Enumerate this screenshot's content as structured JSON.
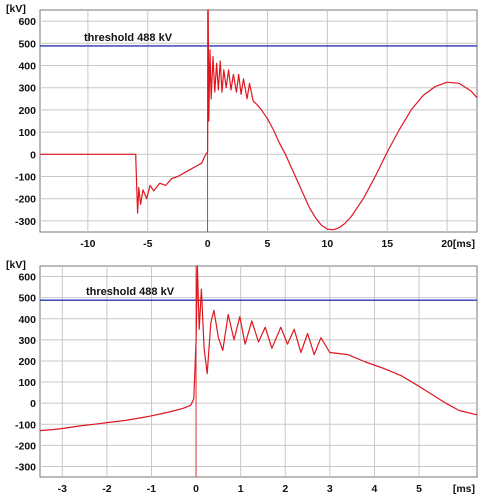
{
  "chart_data": [
    {
      "type": "line",
      "y_unit_label": "[kV]",
      "x_unit_label": "[ms]",
      "xlim": [
        -14,
        22.5
      ],
      "ylim": [
        -350,
        650
      ],
      "x_ticks": [
        -10,
        -5,
        0,
        5,
        10,
        15,
        20
      ],
      "y_ticks": [
        600,
        500,
        400,
        300,
        200,
        100,
        0,
        -100,
        -200,
        -300
      ],
      "grid": true,
      "threshold": {
        "value": 488,
        "label": "threshold 488 kV",
        "color": "#2b35b8"
      },
      "series": [
        {
          "color": "#e0161f",
          "points": [
            [
              -14,
              0
            ],
            [
              -6,
              0
            ],
            [
              -6,
              -20
            ],
            [
              -5.85,
              -265
            ],
            [
              -5.75,
              -150
            ],
            [
              -5.6,
              -225
            ],
            [
              -5.4,
              -160
            ],
            [
              -5.1,
              -200
            ],
            [
              -4.8,
              -140
            ],
            [
              -4.5,
              -165
            ],
            [
              -4,
              -130
            ],
            [
              -3.5,
              -140
            ],
            [
              -3,
              -110
            ],
            [
              -2.5,
              -100
            ],
            [
              -2,
              -85
            ],
            [
              -1.5,
              -70
            ],
            [
              -1,
              -55
            ],
            [
              -0.5,
              -40
            ],
            [
              -0.15,
              0
            ],
            [
              0,
              10
            ],
            [
              0.05,
              650
            ],
            [
              0.1,
              150
            ],
            [
              0.2,
              470
            ],
            [
              0.3,
              250
            ],
            [
              0.45,
              440
            ],
            [
              0.6,
              280
            ],
            [
              0.75,
              410
            ],
            [
              0.9,
              290
            ],
            [
              1.05,
              420
            ],
            [
              1.2,
              280
            ],
            [
              1.35,
              380
            ],
            [
              1.55,
              300
            ],
            [
              1.75,
              380
            ],
            [
              1.95,
              290
            ],
            [
              2.15,
              360
            ],
            [
              2.4,
              280
            ],
            [
              2.6,
              360
            ],
            [
              2.8,
              270
            ],
            [
              3,
              340
            ],
            [
              3.3,
              250
            ],
            [
              3.5,
              320
            ],
            [
              3.8,
              240
            ],
            [
              4.1,
              225
            ],
            [
              4.5,
              200
            ],
            [
              5,
              160
            ],
            [
              5.5,
              110
            ],
            [
              6,
              50
            ],
            [
              6.5,
              0
            ],
            [
              7,
              -60
            ],
            [
              7.5,
              -120
            ],
            [
              8,
              -180
            ],
            [
              8.5,
              -240
            ],
            [
              9,
              -285
            ],
            [
              9.5,
              -320
            ],
            [
              10,
              -337
            ],
            [
              10.5,
              -340
            ],
            [
              11,
              -330
            ],
            [
              11.5,
              -310
            ],
            [
              12,
              -280
            ],
            [
              13,
              -200
            ],
            [
              14,
              -100
            ],
            [
              15,
              10
            ],
            [
              16,
              110
            ],
            [
              17,
              200
            ],
            [
              18,
              265
            ],
            [
              19,
              305
            ],
            [
              20,
              325
            ],
            [
              21,
              320
            ],
            [
              22,
              285
            ],
            [
              22.5,
              255
            ]
          ]
        }
      ]
    },
    {
      "type": "line",
      "y_unit_label": "[kV]",
      "x_unit_label": "[ms]",
      "xlim": [
        -3.5,
        6.3
      ],
      "ylim": [
        -350,
        650
      ],
      "x_ticks": [
        -3,
        -2,
        -1,
        0,
        1,
        2,
        3,
        4,
        5
      ],
      "y_ticks": [
        600,
        500,
        400,
        300,
        200,
        100,
        0,
        -100,
        -200,
        -300
      ],
      "grid": true,
      "threshold": {
        "value": 488,
        "label": "threshold 488 kV",
        "color": "#2b35b8"
      },
      "series": [
        {
          "color": "#e0161f",
          "points": [
            [
              -3.5,
              -130
            ],
            [
              -3.2,
              -125
            ],
            [
              -3,
              -120
            ],
            [
              -2.6,
              -108
            ],
            [
              -2.2,
              -98
            ],
            [
              -2,
              -92
            ],
            [
              -1.6,
              -82
            ],
            [
              -1.2,
              -68
            ],
            [
              -1,
              -60
            ],
            [
              -0.6,
              -42
            ],
            [
              -0.3,
              -25
            ],
            [
              -0.12,
              -10
            ],
            [
              -0.05,
              20
            ],
            [
              0,
              300
            ],
            [
              0.03,
              650
            ],
            [
              0.07,
              350
            ],
            [
              0.12,
              540
            ],
            [
              0.18,
              260
            ],
            [
              0.25,
              140
            ],
            [
              0.33,
              380
            ],
            [
              0.4,
              440
            ],
            [
              0.5,
              310
            ],
            [
              0.6,
              250
            ],
            [
              0.72,
              420
            ],
            [
              0.85,
              300
            ],
            [
              0.98,
              410
            ],
            [
              1.1,
              280
            ],
            [
              1.25,
              390
            ],
            [
              1.4,
              290
            ],
            [
              1.55,
              360
            ],
            [
              1.7,
              260
            ],
            [
              1.9,
              360
            ],
            [
              2.05,
              280
            ],
            [
              2.2,
              350
            ],
            [
              2.35,
              240
            ],
            [
              2.5,
              330
            ],
            [
              2.65,
              230
            ],
            [
              2.8,
              310
            ],
            [
              3,
              240
            ],
            [
              3.4,
              230
            ],
            [
              3.8,
              195
            ],
            [
              4.2,
              165
            ],
            [
              4.6,
              130
            ],
            [
              5,
              80
            ],
            [
              5.3,
              40
            ],
            [
              5.6,
              0
            ],
            [
              5.9,
              -35
            ],
            [
              6.3,
              -55
            ]
          ]
        }
      ]
    }
  ]
}
